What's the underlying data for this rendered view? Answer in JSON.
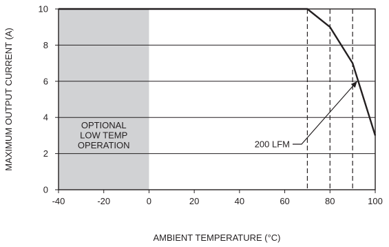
{
  "chart_data": {
    "type": "line",
    "title": "",
    "xlabel": "AMBIENT TEMPERATURE (°C)",
    "ylabel": "MAXIMUM OUTPUT CURRENT (A)",
    "xlim": [
      -40,
      100
    ],
    "ylim": [
      0,
      10
    ],
    "x_ticks": [
      -40,
      -20,
      0,
      20,
      40,
      60,
      80,
      100
    ],
    "y_ticks": [
      0,
      2,
      4,
      6,
      8,
      10
    ],
    "grid": "horizontal",
    "series": [
      {
        "name": "200 LFM",
        "x": [
          -40,
          70,
          80,
          90,
          100
        ],
        "y": [
          10,
          10,
          9,
          7,
          3
        ]
      }
    ],
    "shaded_region": {
      "x": [
        -40,
        0
      ],
      "label": [
        "OPTIONAL",
        "LOW TEMP",
        "OPERATION"
      ]
    },
    "dashed_verticals": [
      70,
      80,
      90
    ],
    "annotation": {
      "text": "200 LFM",
      "points_to": [
        92,
        6
      ]
    },
    "colors": {
      "line": "#231f20",
      "shade": "#d1d2d4",
      "grid": "#231f20"
    }
  }
}
